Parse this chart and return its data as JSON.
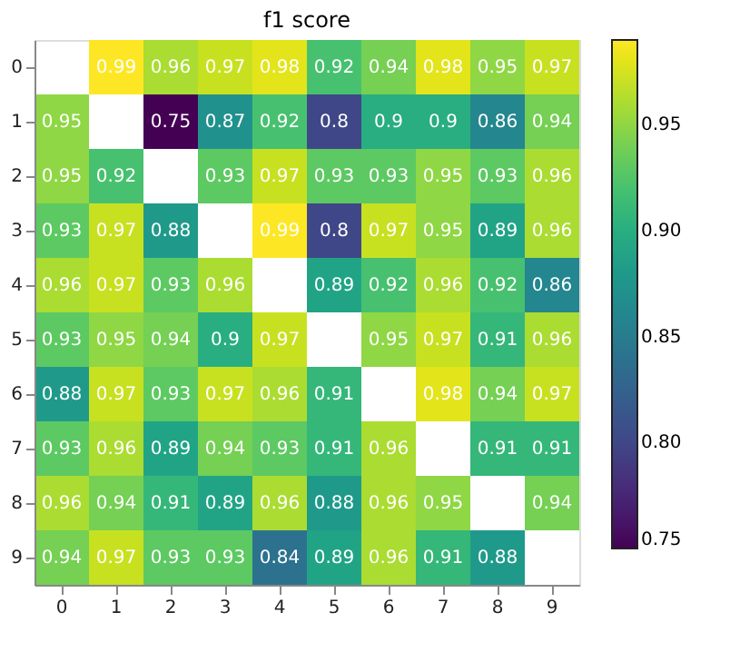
{
  "chart_data": {
    "type": "heatmap",
    "title": "f1 score",
    "categories": [
      "0",
      "1",
      "2",
      "3",
      "4",
      "5",
      "6",
      "7",
      "8",
      "9"
    ],
    "y_categories": [
      "0",
      "1",
      "2",
      "3",
      "4",
      "5",
      "6",
      "7",
      "8",
      "9"
    ],
    "cells": [
      [
        null,
        0.99,
        0.96,
        0.97,
        0.98,
        0.92,
        0.94,
        0.98,
        0.95,
        0.97
      ],
      [
        0.95,
        null,
        0.75,
        0.87,
        0.92,
        0.8,
        0.9,
        0.9,
        0.86,
        0.94
      ],
      [
        0.95,
        0.92,
        null,
        0.93,
        0.97,
        0.93,
        0.93,
        0.95,
        0.93,
        0.96
      ],
      [
        0.93,
        0.97,
        0.88,
        null,
        0.99,
        0.8,
        0.97,
        0.95,
        0.89,
        0.96
      ],
      [
        0.96,
        0.97,
        0.93,
        0.96,
        null,
        0.89,
        0.92,
        0.96,
        0.92,
        0.86
      ],
      [
        0.93,
        0.95,
        0.94,
        0.9,
        0.97,
        null,
        0.95,
        0.97,
        0.91,
        0.96
      ],
      [
        0.88,
        0.97,
        0.93,
        0.97,
        0.96,
        0.91,
        null,
        0.98,
        0.94,
        0.97
      ],
      [
        0.93,
        0.96,
        0.89,
        0.94,
        0.93,
        0.91,
        0.96,
        null,
        0.91,
        0.91
      ],
      [
        0.96,
        0.94,
        0.91,
        0.89,
        0.96,
        0.88,
        0.96,
        0.95,
        null,
        0.94
      ],
      [
        0.94,
        0.97,
        0.93,
        0.93,
        0.84,
        0.89,
        0.96,
        0.91,
        0.88,
        null
      ]
    ],
    "clim": [
      0.75,
      0.99
    ],
    "cticks": [
      0.75,
      {
        "value": 0.8,
        "label": "0.80"
      },
      0.85,
      {
        "value": 0.9,
        "label": "0.90"
      },
      0.95
    ],
    "data_labels": true
  }
}
